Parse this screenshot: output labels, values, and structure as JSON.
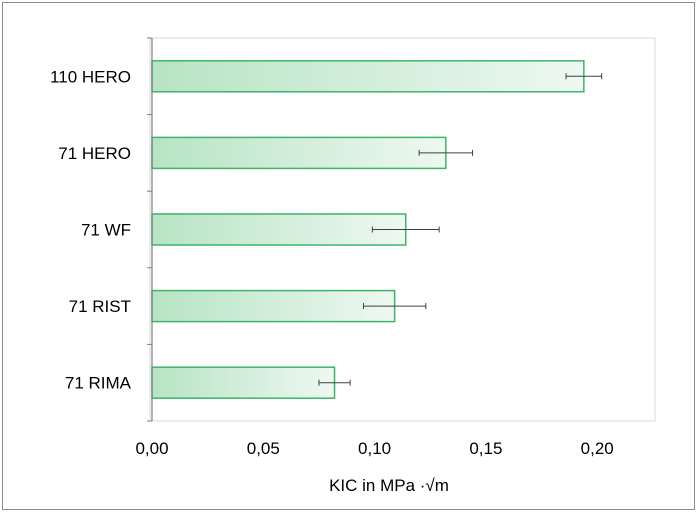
{
  "chart_data": {
    "type": "bar",
    "orientation": "horizontal",
    "categories": [
      "110 HERO",
      "71 HERO",
      "71 WF",
      "71 RIST",
      "71 RIMA"
    ],
    "values": [
      0.194,
      0.132,
      0.114,
      0.109,
      0.082
    ],
    "errors": [
      0.008,
      0.012,
      0.015,
      0.014,
      0.007
    ],
    "xlabel": "KIC in MPa ·√m",
    "xlim": [
      0,
      0.22
    ],
    "xticks": [
      "0,00",
      "0,05",
      "0,10",
      "0,15",
      "0,20"
    ],
    "xtick_values": [
      0,
      0.05,
      0.1,
      0.15,
      0.2
    ],
    "grid": false,
    "bar_color": "#c9ecd3",
    "bar_edge": "#3cb46a",
    "plot_border": "#d9d9d9"
  }
}
